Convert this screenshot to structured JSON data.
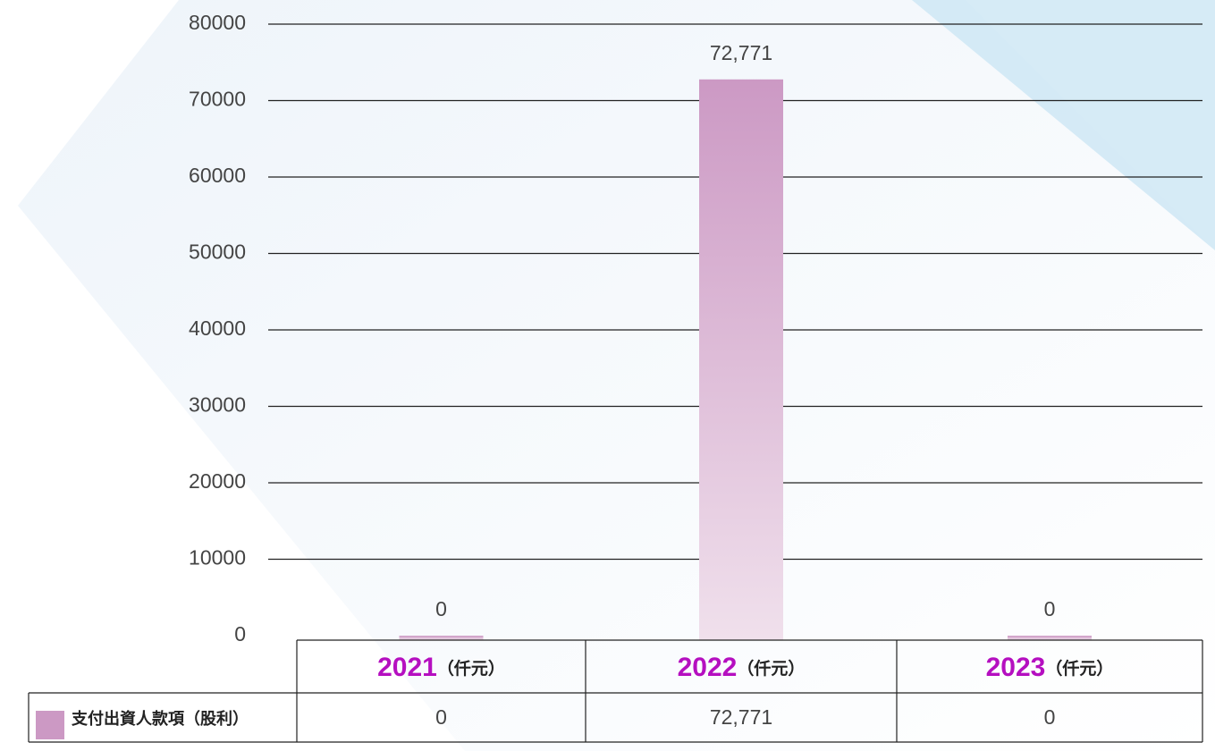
{
  "chart_data": {
    "type": "bar",
    "categories": [
      "2021",
      "2022",
      "2023"
    ],
    "unit": "（仟元）",
    "series": [
      {
        "name": "支付出資人款項（股利）",
        "color": "#cc99c4",
        "values": [
          0,
          72771,
          0
        ],
        "value_labels": [
          "0",
          "72,771",
          "0"
        ]
      }
    ],
    "ylim": [
      0,
      80000
    ],
    "yticks": [
      0,
      10000,
      20000,
      30000,
      40000,
      50000,
      60000,
      70000,
      80000
    ],
    "grid": true
  }
}
